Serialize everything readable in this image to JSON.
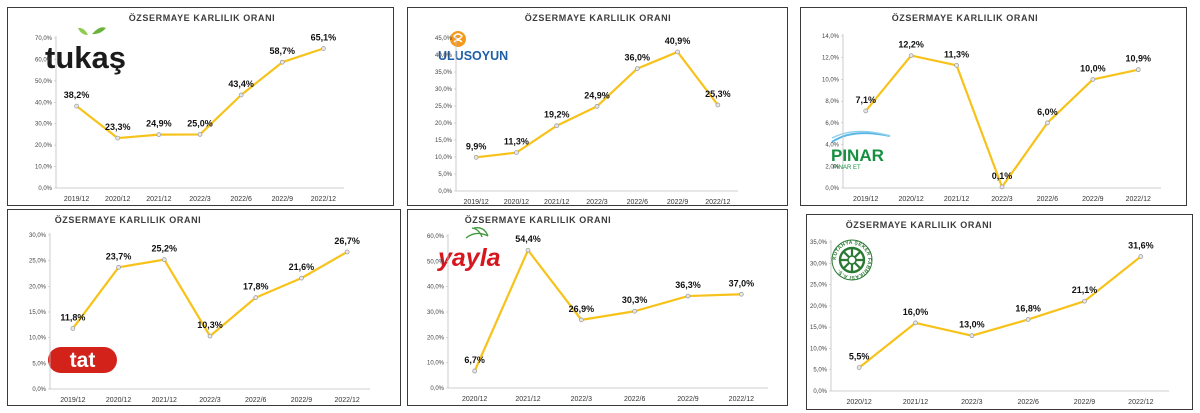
{
  "colors": {
    "line": "#f7c21a",
    "marker_fill": "#e6e6e6",
    "marker_stroke": "#9a9a9a",
    "axis": "#bfbfbf"
  },
  "chart_data": [
    {
      "type": "line",
      "title": "ÖZSERMAYE KARLILIK ORANI",
      "brand": "tukaş",
      "categories": [
        "2019/12",
        "2020/12",
        "2021/12",
        "2022/3",
        "2022/6",
        "2022/9",
        "2022/12"
      ],
      "values": [
        38.2,
        23.3,
        24.9,
        25.0,
        43.4,
        58.7,
        65.1
      ],
      "labels": [
        "38,2%",
        "23,3%",
        "24,9%",
        "25,0%",
        "43,4%",
        "58,7%",
        "65,1%"
      ],
      "yticks": [
        "0,0%",
        "10,0%",
        "20,0%",
        "30,0%",
        "40,0%",
        "50,0%",
        "60,0%",
        "70,0%"
      ],
      "ylim": [
        0,
        70
      ],
      "grid": false
    },
    {
      "type": "line",
      "title": "ÖZSERMAYE KARLILIK ORANI",
      "brand": "ULUSOYUN",
      "categories": [
        "2019/12",
        "2020/12",
        "2021/12",
        "2022/3",
        "2022/6",
        "2022/9",
        "2022/12"
      ],
      "values": [
        9.9,
        11.3,
        19.2,
        24.9,
        36.0,
        40.9,
        25.3
      ],
      "labels": [
        "9,9%",
        "11,3%",
        "19,2%",
        "24,9%",
        "36,0%",
        "40,9%",
        "25,3%"
      ],
      "yticks": [
        "0,0%",
        "5,0%",
        "10,0%",
        "15,0%",
        "20,0%",
        "25,0%",
        "30,0%",
        "35,0%",
        "40,0%",
        "45,0%"
      ],
      "ylim": [
        0,
        45
      ],
      "grid": false
    },
    {
      "type": "line",
      "title": "ÖZSERMAYE KARLILIK ORANI",
      "brand": "PINAR",
      "brand_sub": "PINAR ET",
      "categories": [
        "2019/12",
        "2020/12",
        "2021/12",
        "2022/3",
        "2022/6",
        "2022/9",
        "2022/12"
      ],
      "values": [
        7.1,
        12.2,
        11.3,
        0.1,
        6.0,
        10.0,
        10.9
      ],
      "labels": [
        "7,1%",
        "12,2%",
        "11,3%",
        "0,1%",
        "6,0%",
        "10,0%",
        "10,9%"
      ],
      "yticks": [
        "0,0%",
        "2,0%",
        "4,0%",
        "6,0%",
        "8,0%",
        "10,0%",
        "12,0%",
        "14,0%"
      ],
      "ylim": [
        0,
        14
      ],
      "grid": false
    },
    {
      "type": "line",
      "title": "ÖZSERMAYE KARLILIK ORANI",
      "brand": "tat",
      "categories": [
        "2019/12",
        "2020/12",
        "2021/12",
        "2022/3",
        "2022/6",
        "2022/9",
        "2022/12"
      ],
      "values": [
        11.8,
        23.7,
        25.2,
        10.3,
        17.8,
        21.6,
        26.7
      ],
      "labels": [
        "11,8%",
        "23,7%",
        "25,2%",
        "10,3%",
        "17,8%",
        "21,6%",
        "26,7%"
      ],
      "yticks": [
        "0,0%",
        "5,0%",
        "10,0%",
        "15,0%",
        "20,0%",
        "25,0%",
        "30,0%"
      ],
      "ylim": [
        0,
        30
      ],
      "grid": false
    },
    {
      "type": "line",
      "title": "ÖZSERMAYE KARLILIK ORANI",
      "brand": "yayla",
      "categories": [
        "2020/12",
        "2021/12",
        "2022/3",
        "2022/6",
        "2022/9",
        "2022/12"
      ],
      "values": [
        6.7,
        54.4,
        26.9,
        30.3,
        36.3,
        37.0
      ],
      "labels": [
        "6,7%",
        "54,4%",
        "26,9%",
        "30,3%",
        "36,3%",
        "37,0%"
      ],
      "yticks": [
        "0,0%",
        "10,0%",
        "20,0%",
        "30,0%",
        "40,0%",
        "50,0%",
        "60,0%"
      ],
      "ylim": [
        0,
        60
      ],
      "grid": false
    },
    {
      "type": "line",
      "title": "ÖZSERMAYE KARLILIK ORANI",
      "brand": "KÜTAHYA ŞEKER FABRİKASI A.Ş.",
      "categories": [
        "2020/12",
        "2021/12",
        "2022/3",
        "2022/6",
        "2022/9",
        "2022/12"
      ],
      "values": [
        5.5,
        16.0,
        13.0,
        16.8,
        21.1,
        31.6
      ],
      "labels": [
        "5,5%",
        "16,0%",
        "13,0%",
        "16,8%",
        "21,1%",
        "31,6%"
      ],
      "yticks": [
        "0,0%",
        "5,0%",
        "10,0%",
        "15,0%",
        "20,0%",
        "25,0%",
        "30,0%",
        "35,0%"
      ],
      "ylim": [
        0,
        35
      ],
      "grid": false
    }
  ]
}
